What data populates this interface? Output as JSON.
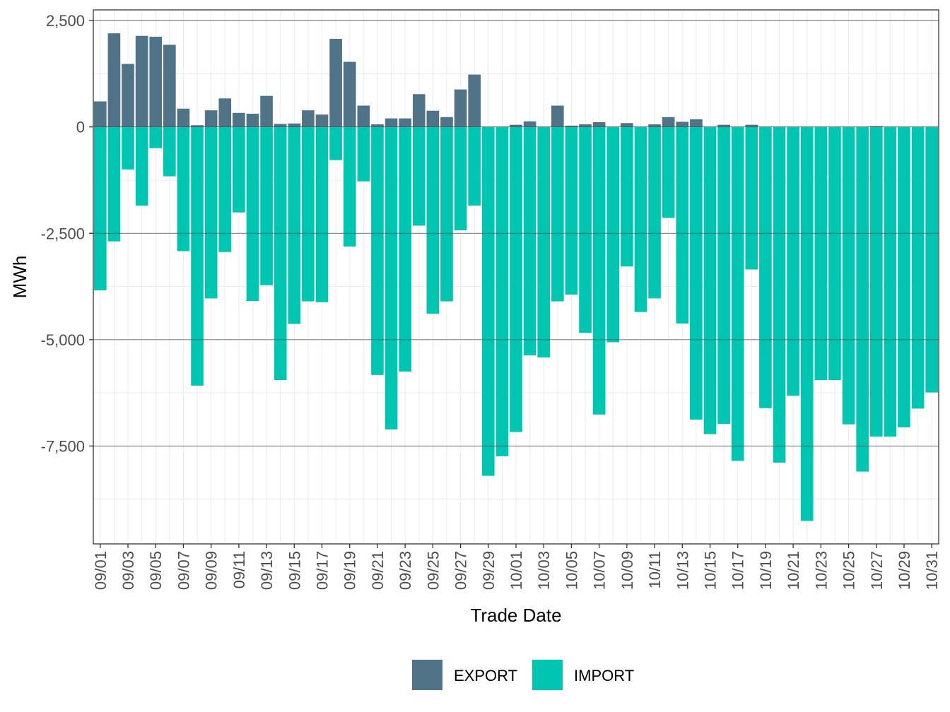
{
  "chart_data": {
    "type": "bar",
    "stacked": true,
    "title": "",
    "xlabel": "Trade Date",
    "ylabel": "MWh",
    "ylim": [
      -9800,
      2750
    ],
    "yticks": [
      2500,
      0,
      -2500,
      -5000,
      -7500
    ],
    "ytick_labels": [
      "2,500",
      "0",
      "-2,500",
      "-5,000",
      "-7,500"
    ],
    "categories": [
      "09/01",
      "09/02",
      "09/03",
      "09/04",
      "09/05",
      "09/06",
      "09/07",
      "09/08",
      "09/09",
      "09/10",
      "09/11",
      "09/12",
      "09/13",
      "09/14",
      "09/15",
      "09/16",
      "09/17",
      "09/18",
      "09/19",
      "09/20",
      "09/21",
      "09/22",
      "09/23",
      "09/24",
      "09/25",
      "09/26",
      "09/27",
      "09/28",
      "09/29",
      "09/30",
      "10/01",
      "10/02",
      "10/03",
      "10/04",
      "10/05",
      "10/06",
      "10/07",
      "10/08",
      "10/09",
      "10/10",
      "10/11",
      "10/12",
      "10/13",
      "10/14",
      "10/15",
      "10/16",
      "10/17",
      "10/18",
      "10/19",
      "10/20",
      "10/21",
      "10/22",
      "10/23",
      "10/24",
      "10/25",
      "10/26",
      "10/27",
      "10/28",
      "10/29",
      "10/30",
      "10/31"
    ],
    "xtick_labels": [
      "09/01",
      "09/03",
      "09/05",
      "09/07",
      "09/09",
      "09/11",
      "09/13",
      "09/15",
      "09/17",
      "09/19",
      "09/21",
      "09/23",
      "09/25",
      "09/27",
      "09/29",
      "10/01",
      "10/03",
      "10/05",
      "10/07",
      "10/09",
      "10/11",
      "10/13",
      "10/15",
      "10/17",
      "10/19",
      "10/21",
      "10/23",
      "10/25",
      "10/27",
      "10/29",
      "10/31"
    ],
    "series": [
      {
        "name": "EXPORT",
        "color": "#517388",
        "values": [
          600,
          2200,
          1480,
          2140,
          2120,
          1930,
          430,
          40,
          390,
          670,
          330,
          310,
          730,
          70,
          80,
          390,
          290,
          2070,
          1530,
          500,
          60,
          200,
          200,
          770,
          380,
          230,
          880,
          1230,
          0,
          0,
          50,
          130,
          0,
          500,
          30,
          60,
          110,
          0,
          90,
          0,
          60,
          230,
          120,
          180,
          0,
          50,
          0,
          50,
          0,
          0,
          0,
          0,
          0,
          0,
          0,
          0,
          20,
          0,
          0,
          0,
          0
        ]
      },
      {
        "name": "IMPORT",
        "color": "#00C5B0",
        "values": [
          -3840,
          -2690,
          -1000,
          -1850,
          -500,
          -1160,
          -2920,
          -6080,
          -4030,
          -2940,
          -2010,
          -4090,
          -3720,
          -5950,
          -4630,
          -4100,
          -4120,
          -780,
          -2810,
          -1280,
          -5830,
          -7110,
          -5750,
          -2320,
          -4390,
          -4100,
          -2430,
          -1850,
          -8200,
          -7740,
          -7170,
          -5370,
          -5420,
          -4100,
          -3940,
          -4840,
          -6760,
          -5060,
          -3280,
          -4350,
          -4030,
          -2140,
          -4620,
          -6880,
          -7220,
          -6980,
          -7850,
          -3350,
          -6610,
          -7890,
          -6320,
          -9260,
          -5950,
          -5950,
          -6990,
          -8100,
          -7280,
          -7280,
          -7060,
          -6620,
          -6240
        ]
      }
    ],
    "legend": {
      "position": "bottom",
      "items": [
        "EXPORT",
        "IMPORT"
      ]
    },
    "grid": true
  }
}
